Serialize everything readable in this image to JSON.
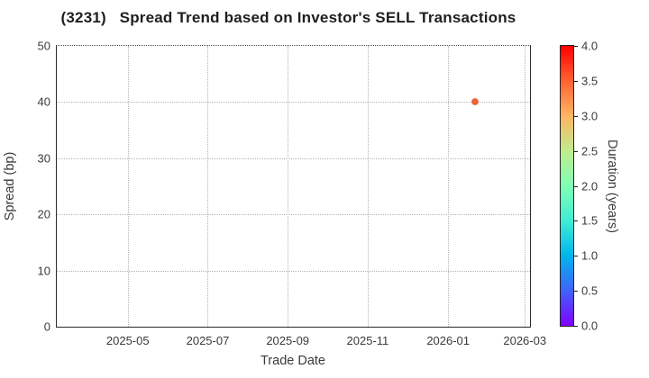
{
  "chart_data": {
    "type": "scatter",
    "title": "(3231)   Spread Trend based on Investor's SELL Transactions",
    "xlabel": "Trade Date",
    "ylabel": "Spread (bp)",
    "ylim": [
      0,
      50
    ],
    "yticks": [
      0,
      10,
      20,
      30,
      40,
      50
    ],
    "xticks": {
      "labels": [
        "2025-05",
        "2025-07",
        "2025-09",
        "2025-11",
        "2026-01",
        "2026-03"
      ],
      "fracs": [
        0.15,
        0.319,
        0.488,
        0.657,
        0.827,
        0.989
      ]
    },
    "xlim_dates_estimate": [
      "2025-03-07",
      "2026-03-06"
    ],
    "grid": true,
    "grid_style": "dotted",
    "points": [
      {
        "date": "2026-01-21",
        "spread_bp": 40,
        "duration_years": 3.5,
        "color": "#f45e33",
        "x_frac": 0.884
      }
    ],
    "colorbar": {
      "label": "Duration (years)",
      "range": [
        0.0,
        4.0
      ],
      "ticks": [
        "4.0",
        "3.5",
        "3.0",
        "2.5",
        "2.0",
        "1.5",
        "1.0",
        "0.5",
        "0.0"
      ],
      "colormap": "rainbow",
      "gradient_stops_bottom_to_top": [
        "#8000ff",
        "#4062fa",
        "#00b5ec",
        "#40ecd4",
        "#80ffb5",
        "#bfec8e",
        "#ffb562",
        "#ff6232",
        "#ff0000"
      ]
    },
    "colors": {
      "spine": "#2b2b2b",
      "gridline": "#b4b4b4",
      "tick_label": "#3a3a3a",
      "title": "#1f1f1f"
    }
  }
}
